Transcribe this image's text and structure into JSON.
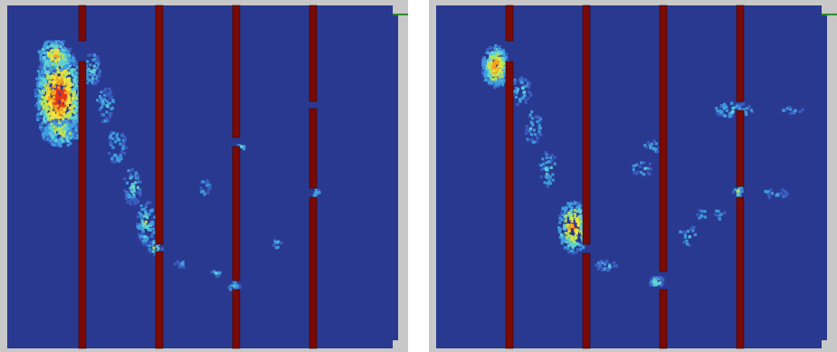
{
  "colors": {
    "frame": "#c8c8c8",
    "field": "#2a3990",
    "wall": "#7a0a06",
    "wall_edge": "#3a0603",
    "exit_marker": "#2e8b2e"
  },
  "colormap": [
    "#3b60c4",
    "#3f9ee0",
    "#5fd3d8",
    "#b8e65a",
    "#f3e23a",
    "#f6a51c",
    "#e8321a"
  ],
  "icons": {
    "left": "density-heatmap-panel-icon",
    "right": "density-heatmap-panel-icon"
  }
}
